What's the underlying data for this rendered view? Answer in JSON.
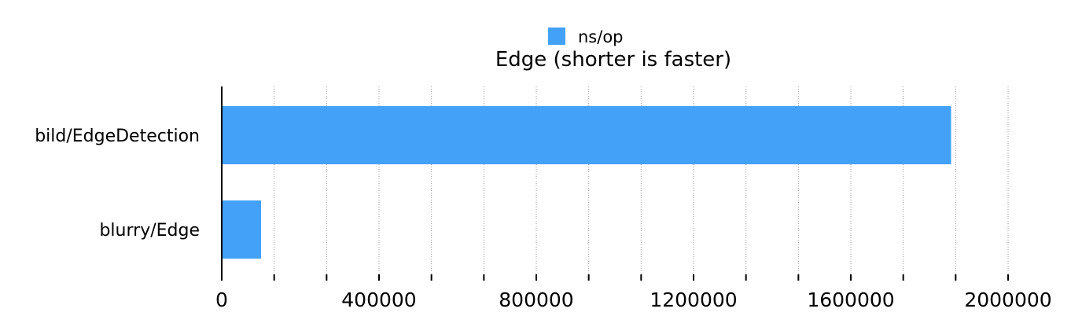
{
  "chart_data": {
    "type": "bar",
    "orientation": "horizontal",
    "title": "Edge (shorter is faster)",
    "legend": {
      "position": "top-center",
      "entries": [
        "ns/op"
      ]
    },
    "categories": [
      "bild/EdgeDetection",
      "blurry/Edge"
    ],
    "series": [
      {
        "name": "ns/op",
        "color": "#43a1f7",
        "values": [
          1855000,
          100000
        ]
      }
    ],
    "xlim": [
      0,
      2000000
    ],
    "x_ticks": [
      "0",
      "400000",
      "800000",
      "1200000",
      "1600000",
      "2000000"
    ],
    "x_minor_tick_step": 133333.33,
    "grid": "vertical dotted",
    "xlabel": "",
    "ylabel": ""
  }
}
